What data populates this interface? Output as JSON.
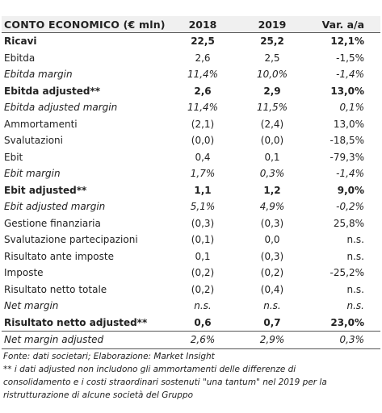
{
  "table": {
    "headers": [
      "CONTO ECONOMICO (€ mln)",
      "2018",
      "2019",
      "Var. a/a"
    ],
    "rows": [
      {
        "label": "Ricavi",
        "v2018": "22,5",
        "v2019": "25,2",
        "var": "12,1%",
        "style": "bold"
      },
      {
        "label": "Ebitda",
        "v2018": "2,6",
        "v2019": "2,5",
        "var": "-1,5%",
        "style": "normal"
      },
      {
        "label": "Ebitda margin",
        "v2018": "11,4%",
        "v2019": "10,0%",
        "var": "-1,4%",
        "style": "italic"
      },
      {
        "label": "Ebitda adjusted**",
        "v2018": "2,6",
        "v2019": "2,9",
        "var": "13,0%",
        "style": "bold"
      },
      {
        "label": "Ebitda adjusted margin",
        "v2018": "11,4%",
        "v2019": "11,5%",
        "var": "0,1%",
        "style": "italic"
      },
      {
        "label": "Ammortamenti",
        "v2018": "(2,1)",
        "v2019": "(2,4)",
        "var": "13,0%",
        "style": "normal"
      },
      {
        "label": "Svalutazioni",
        "v2018": "(0,0)",
        "v2019": "(0,0)",
        "var": "-18,5%",
        "style": "normal"
      },
      {
        "label": "Ebit",
        "v2018": "0,4",
        "v2019": "0,1",
        "var": "-79,3%",
        "style": "normal"
      },
      {
        "label": "Ebit margin",
        "v2018": "1,7%",
        "v2019": "0,3%",
        "var": "-1,4%",
        "style": "italic"
      },
      {
        "label": "Ebit adjusted**",
        "v2018": "1,1",
        "v2019": "1,2",
        "var": "9,0%",
        "style": "bold"
      },
      {
        "label": "Ebit adjusted margin",
        "v2018": "5,1%",
        "v2019": "4,9%",
        "var": "-0,2%",
        "style": "italic"
      },
      {
        "label": "Gestione finanziaria",
        "v2018": "(0,3)",
        "v2019": "(0,3)",
        "var": "25,8%",
        "style": "normal"
      },
      {
        "label": "Svalutazione partecipazioni",
        "v2018": "(0,1)",
        "v2019": "0,0",
        "var": "n.s.",
        "style": "normal"
      },
      {
        "label": "Risultato ante imposte",
        "v2018": "0,1",
        "v2019": "(0,3)",
        "var": "n.s.",
        "style": "normal"
      },
      {
        "label": "Imposte",
        "v2018": "(0,2)",
        "v2019": "(0,2)",
        "var": "-25,2%",
        "style": "normal"
      },
      {
        "label": "Risultato netto totale",
        "v2018": "(0,2)",
        "v2019": "(0,4)",
        "var": "n.s.",
        "style": "normal"
      },
      {
        "label": "Net margin",
        "v2018": "n.s.",
        "v2019": "n.s.",
        "var": "n.s.",
        "style": "italic"
      },
      {
        "label": "Risultato netto adjusted**",
        "v2018": "0,6",
        "v2019": "0,7",
        "var": "23,0%",
        "style": "bold"
      },
      {
        "label": "Net margin adjusted",
        "v2018": "2,6%",
        "v2019": "2,9%",
        "var": "0,3%",
        "style": "italic"
      }
    ]
  },
  "notes": {
    "source": "Fonte: dati societari; Elaborazione: Market Insight",
    "footnote_line1": "** i dati adjusted non includono gli ammortamenti delle differenze di",
    "footnote_line2": "consolidamento e i costi straordinari sostenuti \"una tantum\" nel 2019 per la",
    "footnote_line3": "ristrutturazione di alcune società del Gruppo"
  }
}
